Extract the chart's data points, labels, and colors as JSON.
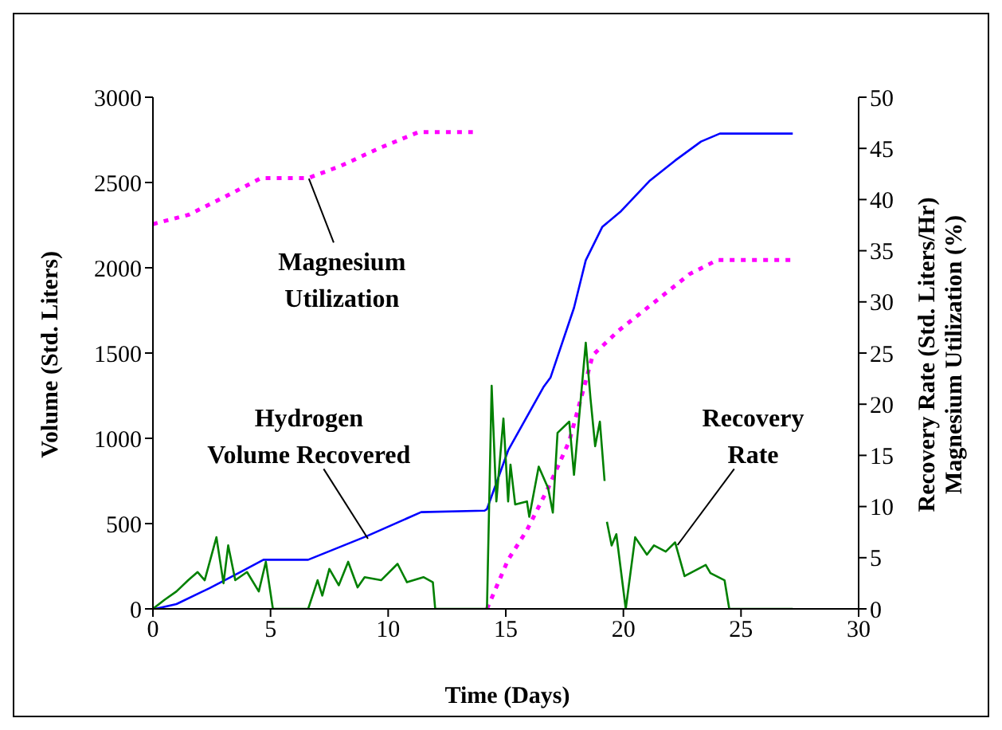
{
  "chart_data": {
    "type": "line",
    "xlabel": "Time (Days)",
    "ylabel": "Volume (Std. Liters)",
    "y2label": "Recovery Rate (Std. Liters/Hr)\nMagnesium Utilization (%)",
    "xlim": [
      0,
      30
    ],
    "xticks": [
      0,
      5,
      10,
      15,
      20,
      25,
      30
    ],
    "ylim": [
      0,
      3000
    ],
    "yticks": [
      0,
      500,
      1000,
      1500,
      2000,
      2500,
      3000
    ],
    "y2lim": [
      0,
      50
    ],
    "y2ticks": [
      0,
      5,
      10,
      15,
      20,
      25,
      30,
      35,
      40,
      45,
      50
    ],
    "marker": "none",
    "series": [
      {
        "name": "Hydrogen Volume Recovered",
        "color": "#0000ff",
        "line_style": "solid",
        "x": [
          0,
          0.1,
          1.0,
          2.4,
          3.7,
          4.7,
          6.6,
          9.1,
          11.4,
          14.1,
          14.2,
          15.1,
          16.6,
          16.9,
          17.9,
          18.4,
          19.1,
          19.9,
          21.1,
          22.2,
          23.3,
          24.1,
          27.2
        ],
        "values": [
          0,
          0,
          28,
          121,
          214,
          288,
          288,
          427,
          567,
          576,
          585,
          929,
          1300,
          1356,
          1765,
          2044,
          2239,
          2332,
          2508,
          2629,
          2740,
          2787,
          2787
        ]
      },
      {
        "name": "Magnesium Utilization",
        "color": "#ff00ff",
        "axis": "y2",
        "line_style": "dotted",
        "x": [
          0,
          1.5,
          3.0,
          4.6,
          6.6,
          8.0,
          9.6,
          11.3,
          13.6,
          13.9,
          14.2,
          15.1,
          15.9,
          16.8,
          17.7,
          18.7,
          19.8,
          21.5,
          22.8,
          24.0,
          27.2
        ],
        "values": [
          37.6,
          38.5,
          40.2,
          42.1,
          42.1,
          43.3,
          45.0,
          46.6,
          46.6,
          null,
          0,
          4.8,
          7.7,
          11.8,
          16.4,
          24.8,
          27.2,
          30.3,
          32.7,
          34.1,
          34.1
        ]
      },
      {
        "name": "Recovery Rate",
        "color": "#008000",
        "axis": "y2",
        "line_style": "solid",
        "x": [
          0,
          0.5,
          1.0,
          1.5,
          1.9,
          2.2,
          2.7,
          3.0,
          3.2,
          3.5,
          4.0,
          4.5,
          4.8,
          5.1,
          6.6,
          7.0,
          7.2,
          7.5,
          7.9,
          8.3,
          8.7,
          9.0,
          9.7,
          10.4,
          10.8,
          11.5,
          11.9,
          12.0,
          14.1,
          14.2,
          14.4,
          14.6,
          14.9,
          15.1,
          15.2,
          15.4,
          15.9,
          16.0,
          16.4,
          16.8,
          17.0,
          17.2,
          17.7,
          17.9,
          18.4,
          18.6,
          18.8,
          19.0,
          19.2,
          19.25,
          19.3,
          19.5,
          19.7,
          20.1,
          20.5,
          21.0,
          21.3,
          21.8,
          22.2,
          22.6,
          23.5,
          23.7,
          24.3,
          24.5,
          27.2
        ],
        "values": [
          0,
          0.9,
          1.7,
          2.8,
          3.6,
          2.8,
          7.0,
          2.5,
          6.2,
          2.8,
          3.6,
          1.7,
          4.6,
          0,
          0,
          2.8,
          1.3,
          3.9,
          2.3,
          4.6,
          2.1,
          3.1,
          2.8,
          4.4,
          2.6,
          3.1,
          2.6,
          0,
          0,
          0,
          21.8,
          10.5,
          18.6,
          10.5,
          14.1,
          10.2,
          10.5,
          9.0,
          13.9,
          11.8,
          9.4,
          17.2,
          18.3,
          13.1,
          26.0,
          20.6,
          15.9,
          18.3,
          12.5,
          null,
          8.5,
          6.2,
          7.3,
          0,
          7.0,
          5.3,
          6.2,
          5.6,
          6.5,
          3.2,
          4.3,
          3.5,
          2.8,
          0,
          0
        ]
      }
    ]
  }
}
